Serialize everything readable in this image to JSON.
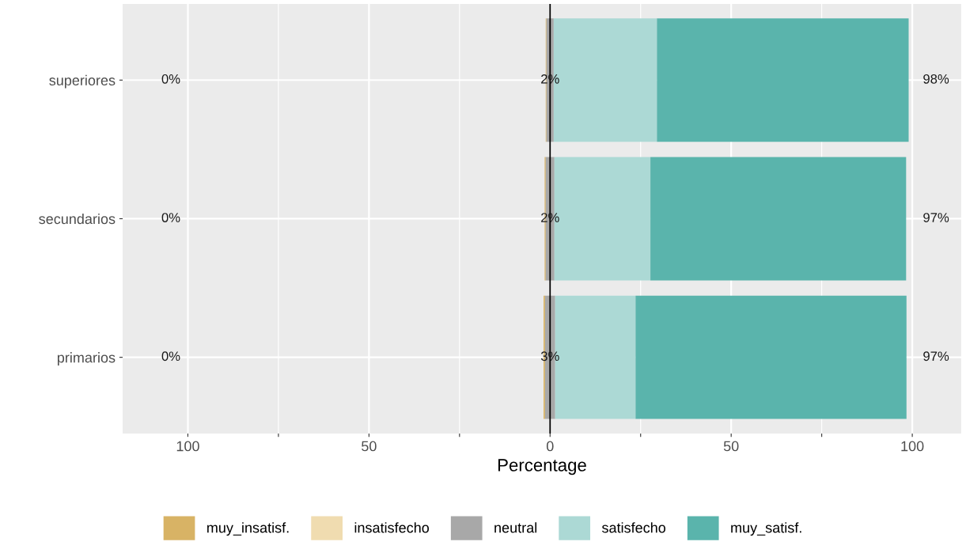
{
  "chart_data": {
    "type": "bar",
    "orientation": "horizontal",
    "categories": [
      "superiores",
      "secundarios",
      "primarios"
    ],
    "series": [
      {
        "name": "muy_insatisf.",
        "color": "#d8b365",
        "values": [
          0.2,
          0.3,
          0.4
        ],
        "base": [
          -1.2,
          -1.5,
          -1.8
        ]
      },
      {
        "name": "insatisfecho",
        "color": "#f0dcb0",
        "values": [
          0,
          0,
          0
        ]
      },
      {
        "name": "neutral",
        "color": "#a8a8a8",
        "values": [
          2,
          2.4,
          2.8
        ],
        "base": [
          -1.0,
          -1.2,
          -1.4
        ]
      },
      {
        "name": "satisfecho",
        "color": "#acd9d5",
        "values": [
          28.5,
          26.5,
          22.2
        ],
        "base": [
          1.0,
          1.2,
          1.4
        ]
      },
      {
        "name": "muy_satisf.",
        "color": "#5ab4ac",
        "values": [
          69.5,
          70.6,
          74.8
        ],
        "base": [
          29.5,
          27.7,
          23.6
        ]
      }
    ],
    "xlabel": "Percentage",
    "xlim": [
      -118,
      113.5
    ],
    "xticks": [
      {
        "value": -100,
        "label": "100"
      },
      {
        "value": -75,
        "label": null
      },
      {
        "value": -50,
        "label": "50"
      },
      {
        "value": -25,
        "label": null
      },
      0,
      {
        "value": 25,
        "label": null
      },
      50,
      {
        "value": 75,
        "label": null
      },
      100
    ],
    "ref_lines": [
      {
        "axis": "x",
        "value": 0,
        "color": "#000000"
      }
    ],
    "annotations": [
      "0%",
      "2%",
      "98%",
      "0%",
      "2%",
      "97%",
      "0%",
      "3%",
      "97%"
    ],
    "grid": true,
    "legend": "bottom"
  }
}
